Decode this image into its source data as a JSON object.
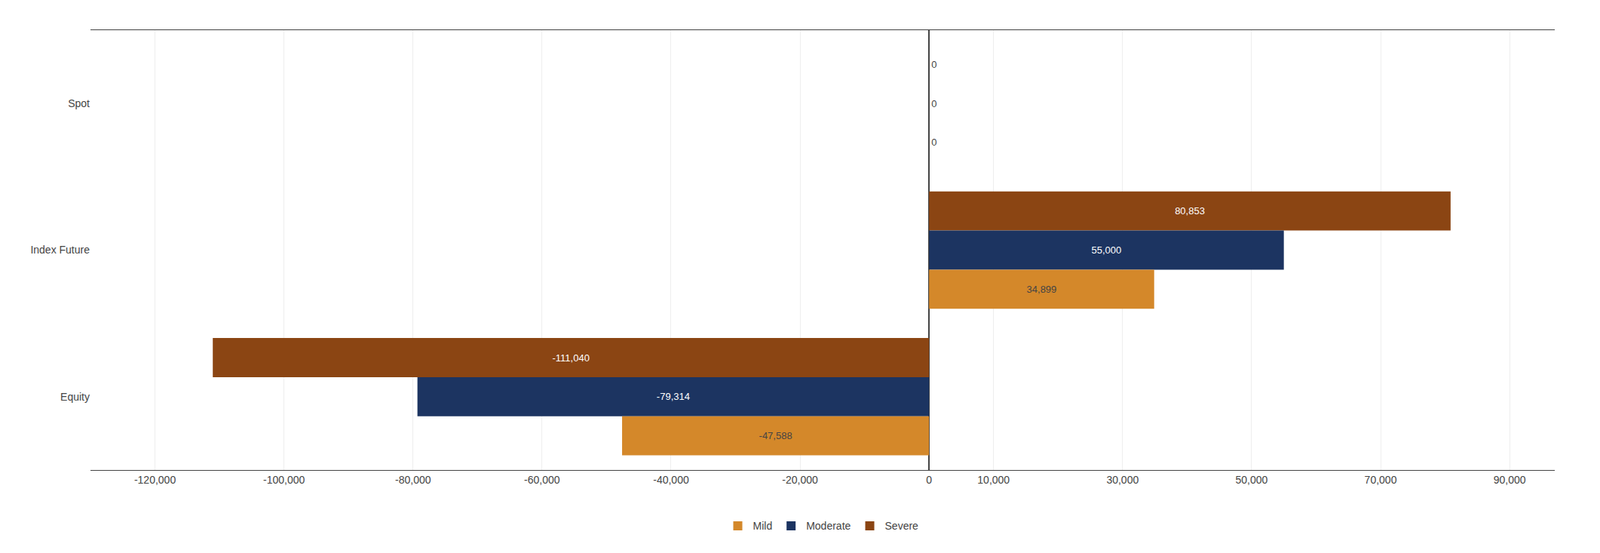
{
  "chart_data": {
    "type": "bar",
    "orientation": "horizontal",
    "categories": [
      "Spot",
      "Index Future",
      "Equity"
    ],
    "series": [
      {
        "name": "Severe",
        "color": "#8B4513",
        "values": [
          0,
          80853,
          -111040
        ],
        "value_labels": [
          "0",
          "80,853",
          "-111,040"
        ]
      },
      {
        "name": "Moderate",
        "color": "#1C3461",
        "values": [
          0,
          55000,
          -79314
        ],
        "value_labels": [
          "0",
          "55,000",
          "-79,314"
        ]
      },
      {
        "name": "Mild",
        "color": "#D4882A",
        "values": [
          0,
          34899,
          -47588
        ],
        "value_labels": [
          "0",
          "34,899",
          "-47,588"
        ]
      }
    ],
    "xlim": [
      -130000,
      97000
    ],
    "xticks": [
      {
        "value": -120000,
        "label": "-120,000"
      },
      {
        "value": -100000,
        "label": "-100,000"
      },
      {
        "value": -80000,
        "label": "-80,000"
      },
      {
        "value": -60000,
        "label": "-60,000"
      },
      {
        "value": -40000,
        "label": "-40,000"
      },
      {
        "value": -20000,
        "label": "-20,000"
      },
      0,
      {
        "value": 10000,
        "label": "10,000"
      },
      {
        "value": 30000,
        "label": "30,000"
      },
      {
        "value": 50000,
        "label": "50,000"
      },
      {
        "value": 70000,
        "label": "70,000"
      },
      {
        "value": 90000,
        "label": "90,000"
      }
    ],
    "grid": true,
    "data_labels": true,
    "legend": "bottom"
  }
}
